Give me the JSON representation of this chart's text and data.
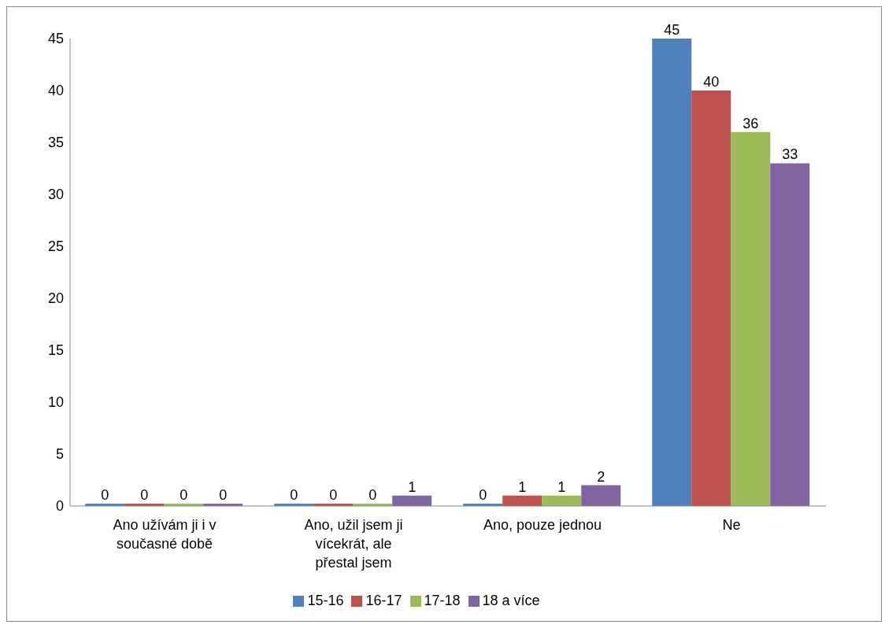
{
  "chart_data": {
    "type": "bar",
    "categories": [
      "Ano užívám ji i v současné době",
      "Ano, užil jsem ji vícekrát, ale přestal jsem",
      "Ano, pouze jednou",
      "Ne"
    ],
    "series": [
      {
        "name": "15-16",
        "color": "#4f81bd",
        "values": [
          0,
          0,
          0,
          45
        ]
      },
      {
        "name": "16-17",
        "color": "#c0504d",
        "values": [
          0,
          0,
          1,
          40
        ]
      },
      {
        "name": "17-18",
        "color": "#9bbb59",
        "values": [
          0,
          0,
          1,
          36
        ]
      },
      {
        "name": "18 a více",
        "color": "#8064a2",
        "values": [
          0,
          1,
          2,
          33
        ]
      }
    ],
    "ylim": [
      0,
      45
    ],
    "yticks": [
      0,
      5,
      10,
      15,
      20,
      25,
      30,
      35,
      40,
      45
    ],
    "grid": false,
    "legend": "bottom",
    "data_labels": true
  }
}
